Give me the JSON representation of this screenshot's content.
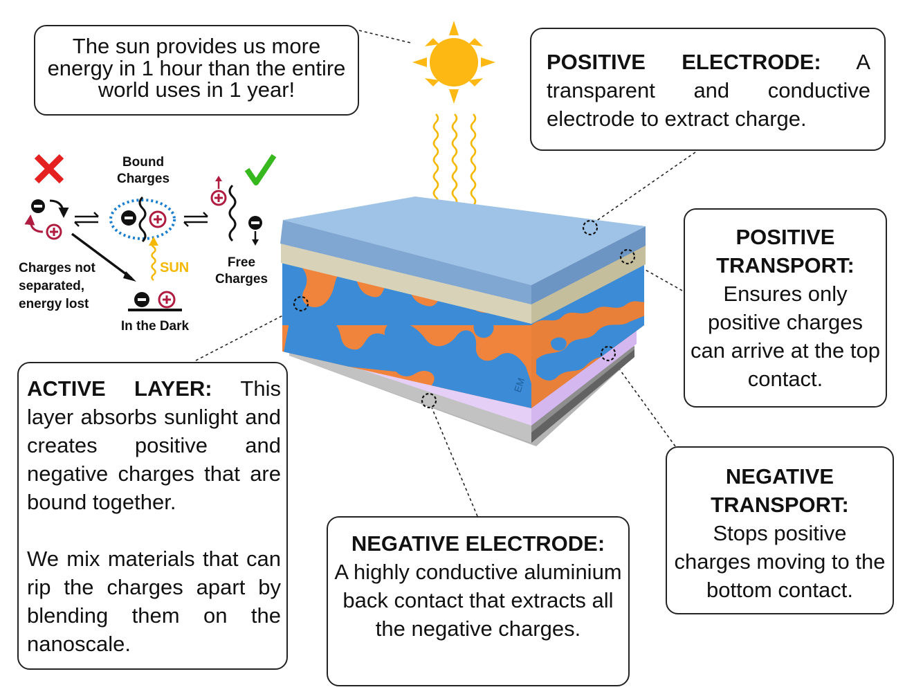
{
  "sun_fact": "The sun provides us more energy in 1 hour than the entire world uses in 1 year!",
  "positive_electrode": {
    "title": "POSITIVE ELECTRODE:",
    "text": "A transparent and conductive electrode to extract charge."
  },
  "positive_transport": {
    "title_line1": "POSITIVE",
    "title_line2": "TRANSPORT:",
    "text": "Ensures only positive charges can arrive at the top contact."
  },
  "active_layer": {
    "title": "ACTIVE LAYER:",
    "text": "This layer absorbs sunlight and creates positive and negative charges that are bound together.",
    "text2": "We mix materials that can rip the charges apart by blending them on the nanoscale."
  },
  "negative_electrode": {
    "title": "NEGATIVE ELECTRODE:",
    "text": "A highly conductive aluminium back contact that extracts all the negative charges."
  },
  "negative_transport": {
    "title_line1": "NEGATIVE",
    "title_line2": "TRANSPORT:",
    "text": "Stops positive charges moving to the bottom contact."
  },
  "mechanism": {
    "bound_line1": "Bound",
    "bound_line2": "Charges",
    "free_line1": "Free",
    "free_line2": "Charges",
    "lost_line1": "Charges not",
    "lost_line2": "separated,",
    "lost_line3": "energy lost",
    "dark": "In the Dark",
    "sun": "SUN",
    "minus": "−",
    "plus": "+"
  },
  "watermark": "EM",
  "colors": {
    "sun": "#fdb813",
    "ray": "#f5b800",
    "electrode": "#8fb4da",
    "transport_top": "#d7d2b6",
    "active_orange": "#f0843c",
    "active_blue": "#3b8bd6",
    "transport_bottom": "#e0c8f5",
    "aluminium": "#b5b5b5",
    "cross": "#e52020",
    "check": "#37b81f",
    "positive": "#b01c40",
    "exciton": "#1a7fd0"
  }
}
